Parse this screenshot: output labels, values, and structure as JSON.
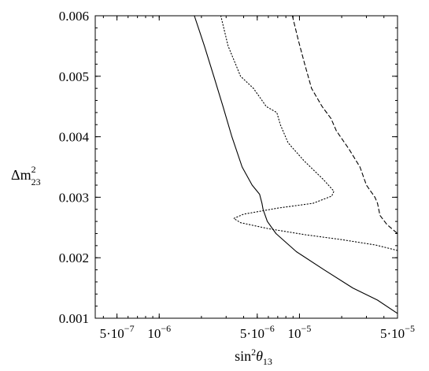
{
  "chart_data": {
    "type": "line",
    "title": "",
    "x_scale": "log",
    "xlim": [
      3.5e-07,
      5e-05
    ],
    "ylim": [
      0.001,
      0.006
    ],
    "grid": false,
    "legend": "none",
    "xlabel_parts": {
      "base": "sin",
      "sup": "2",
      "theta": "θ",
      "sub": "13"
    },
    "ylabel_parts": {
      "base": "Δm",
      "sup": "2",
      "sub": "23"
    },
    "x_ticks": [
      {
        "value": 5e-07,
        "mantissa": "5·10",
        "exp": "−7"
      },
      {
        "value": 1e-06,
        "mantissa": "10",
        "exp": "−6"
      },
      {
        "value": 5e-06,
        "mantissa": "5·10",
        "exp": "−6"
      },
      {
        "value": 1e-05,
        "mantissa": "10",
        "exp": "−5"
      },
      {
        "value": 5e-05,
        "mantissa": "5·10",
        "exp": "−5"
      }
    ],
    "y_ticks": [
      {
        "value": 0.001,
        "label": "0.001"
      },
      {
        "value": 0.002,
        "label": "0.002"
      },
      {
        "value": 0.003,
        "label": "0.003"
      },
      {
        "value": 0.004,
        "label": "0.004"
      },
      {
        "value": 0.005,
        "label": "0.005"
      },
      {
        "value": 0.006,
        "label": "0.006"
      }
    ],
    "series": [
      {
        "style": "solid",
        "points": [
          [
            1.78e-06,
            0.006
          ],
          [
            2.1e-06,
            0.0055
          ],
          [
            2.45e-06,
            0.005
          ],
          [
            2.85e-06,
            0.0045
          ],
          [
            3.3e-06,
            0.004
          ],
          [
            3.9e-06,
            0.0035
          ],
          [
            4.6e-06,
            0.0032
          ],
          [
            5.2e-06,
            0.00305
          ],
          [
            5.4e-06,
            0.0029
          ],
          [
            5.5e-06,
            0.0028
          ],
          [
            5.9e-06,
            0.0026
          ],
          [
            6.8e-06,
            0.0024
          ],
          [
            9.5e-06,
            0.0021
          ],
          [
            1.5e-05,
            0.0018
          ],
          [
            2.4e-05,
            0.0015
          ],
          [
            3.6e-05,
            0.0013
          ],
          [
            5e-05,
            0.00108
          ]
        ]
      },
      {
        "style": "dotted",
        "points": [
          [
            2.75e-06,
            0.006
          ],
          [
            3.1e-06,
            0.0055
          ],
          [
            3.8e-06,
            0.005
          ],
          [
            4.7e-06,
            0.0048
          ],
          [
            5.8e-06,
            0.0045
          ],
          [
            6.9e-06,
            0.0044
          ],
          [
            7.3e-06,
            0.0042
          ],
          [
            8.3e-06,
            0.0039
          ],
          [
            1.08e-05,
            0.0036
          ],
          [
            1.47e-05,
            0.0033
          ],
          [
            1.76e-05,
            0.0031
          ],
          [
            1.7e-05,
            0.00302
          ],
          [
            1.25e-05,
            0.0029
          ],
          [
            7e-06,
            0.00282
          ],
          [
            4e-06,
            0.00272
          ],
          [
            3.4e-06,
            0.00265
          ],
          [
            3.8e-06,
            0.00258
          ],
          [
            6e-06,
            0.00248
          ],
          [
            1.1e-05,
            0.00238
          ],
          [
            2e-05,
            0.0023
          ],
          [
            3.5e-05,
            0.00221
          ],
          [
            5e-05,
            0.00212
          ]
        ]
      },
      {
        "style": "dashed",
        "points": [
          [
            8.9e-06,
            0.006
          ],
          [
            9.8e-06,
            0.0056
          ],
          [
            1.09e-05,
            0.0052
          ],
          [
            1.22e-05,
            0.0048
          ],
          [
            1.45e-05,
            0.0045
          ],
          [
            1.68e-05,
            0.0043
          ],
          [
            1.83e-05,
            0.0041
          ],
          [
            2.25e-05,
            0.0038
          ],
          [
            2.7e-05,
            0.0035
          ],
          [
            3e-05,
            0.0032
          ],
          [
            3.45e-05,
            0.003
          ],
          [
            3.6e-05,
            0.0029
          ],
          [
            3.75e-05,
            0.0027
          ],
          [
            4.2e-05,
            0.00255
          ],
          [
            5e-05,
            0.0024
          ]
        ]
      }
    ]
  }
}
